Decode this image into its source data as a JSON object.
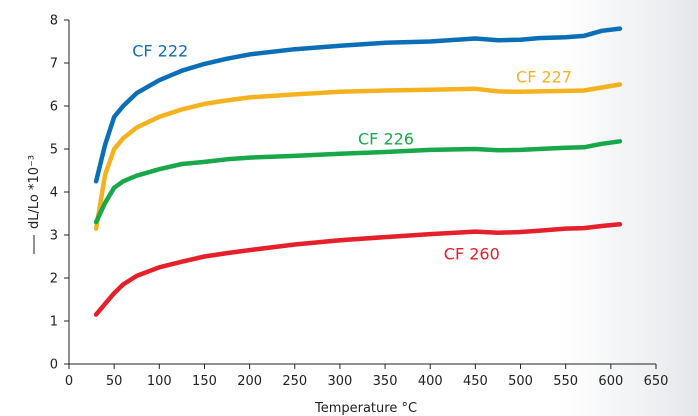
{
  "chart_data": {
    "type": "line",
    "title": "",
    "xlabel": "Temperature °C",
    "ylabel": "dL/Lo *10⁻³",
    "xlim": [
      0,
      650
    ],
    "ylim": [
      0,
      8
    ],
    "x_ticks": [
      0,
      50,
      100,
      150,
      200,
      250,
      300,
      350,
      400,
      450,
      500,
      550,
      600,
      650
    ],
    "y_ticks": [
      0,
      1,
      2,
      3,
      4,
      5,
      6,
      7,
      8
    ],
    "grid": false,
    "legend": "none",
    "series": [
      {
        "name": "CF 222",
        "color": "#0b6fb8",
        "x": [
          30,
          40,
          50,
          60,
          75,
          100,
          125,
          150,
          175,
          200,
          250,
          300,
          350,
          400,
          450,
          475,
          500,
          520,
          550,
          570,
          590,
          610
        ],
        "y": [
          4.25,
          5.1,
          5.75,
          6.0,
          6.3,
          6.6,
          6.82,
          6.98,
          7.1,
          7.2,
          7.32,
          7.4,
          7.47,
          7.5,
          7.57,
          7.53,
          7.54,
          7.58,
          7.6,
          7.63,
          7.75,
          7.8
        ]
      },
      {
        "name": "CF 227",
        "color": "#f5b21f",
        "x": [
          30,
          40,
          50,
          60,
          75,
          100,
          125,
          150,
          175,
          200,
          250,
          300,
          350,
          400,
          450,
          475,
          500,
          520,
          550,
          570,
          590,
          610
        ],
        "y": [
          3.15,
          4.4,
          5.0,
          5.25,
          5.5,
          5.75,
          5.92,
          6.05,
          6.13,
          6.2,
          6.27,
          6.33,
          6.36,
          6.38,
          6.4,
          6.34,
          6.33,
          6.34,
          6.35,
          6.36,
          6.43,
          6.5
        ]
      },
      {
        "name": "CF 226",
        "color": "#18a84a",
        "x": [
          30,
          40,
          50,
          60,
          75,
          100,
          125,
          150,
          175,
          200,
          250,
          300,
          350,
          400,
          450,
          475,
          500,
          520,
          550,
          570,
          590,
          610
        ],
        "y": [
          3.3,
          3.75,
          4.1,
          4.25,
          4.38,
          4.53,
          4.65,
          4.7,
          4.76,
          4.8,
          4.84,
          4.89,
          4.93,
          4.98,
          5.0,
          4.97,
          4.98,
          5.0,
          5.03,
          5.04,
          5.12,
          5.18
        ]
      },
      {
        "name": "CF 260",
        "color": "#e5202a",
        "x": [
          30,
          40,
          50,
          60,
          75,
          100,
          125,
          150,
          175,
          200,
          250,
          300,
          350,
          400,
          450,
          475,
          500,
          520,
          550,
          570,
          590,
          610
        ],
        "y": [
          1.15,
          1.4,
          1.65,
          1.85,
          2.05,
          2.25,
          2.38,
          2.5,
          2.58,
          2.65,
          2.78,
          2.88,
          2.95,
          3.02,
          3.08,
          3.05,
          3.07,
          3.1,
          3.15,
          3.16,
          3.21,
          3.25
        ]
      }
    ],
    "labels": [
      {
        "text": "CF 222",
        "color": "#0b6fb8",
        "x": 70,
        "y": 7.15
      },
      {
        "text": "CF 227",
        "color": "#f5b21f",
        "x": 495,
        "y": 6.55
      },
      {
        "text": "CF 226",
        "color": "#18a84a",
        "x": 320,
        "y": 5.1
      },
      {
        "text": "CF 260",
        "color": "#e5202a",
        "x": 415,
        "y": 2.43
      }
    ]
  }
}
